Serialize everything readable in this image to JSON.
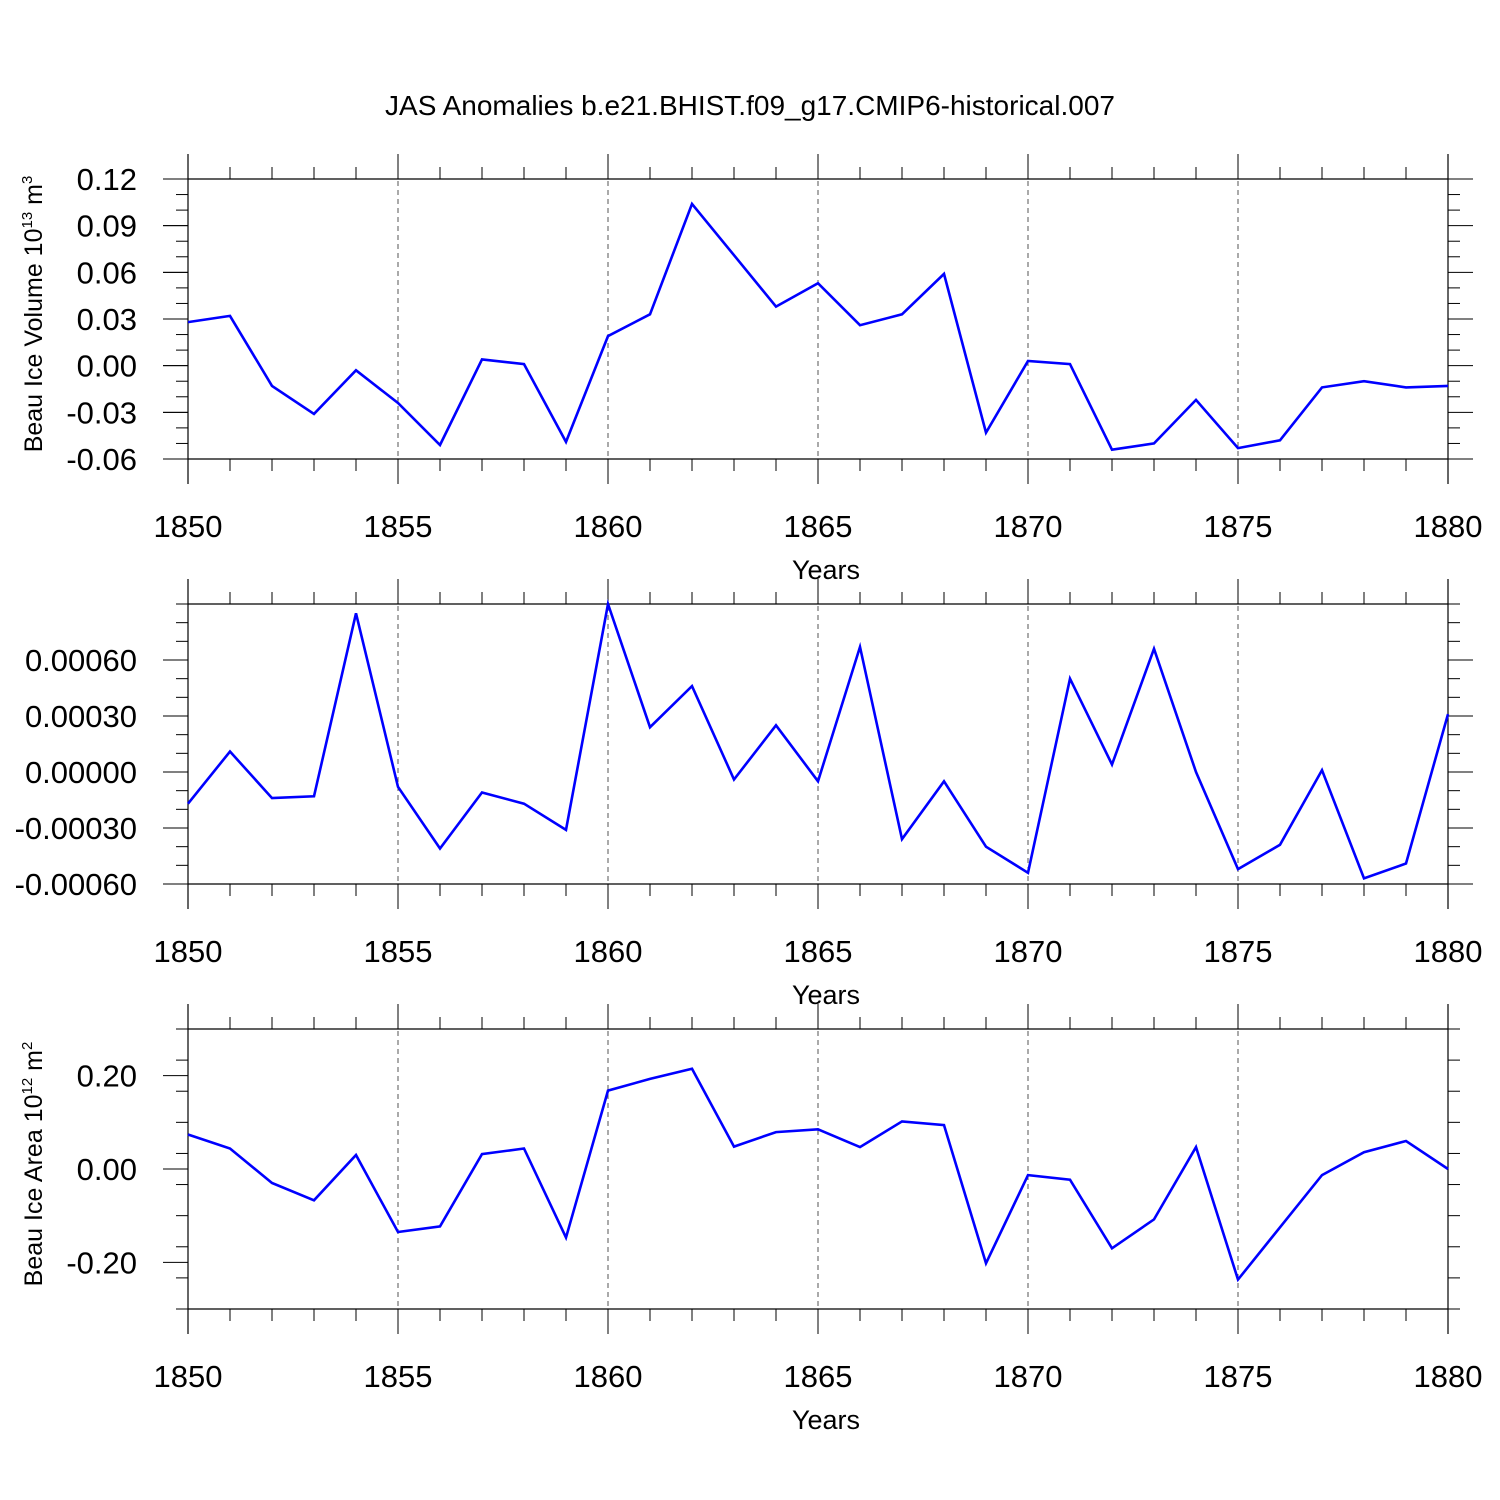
{
  "title": "JAS Anomalies b.e21.BHIST.f09_g17.CMIP6-historical.007",
  "colors": {
    "line": "#0000ff",
    "axis": "#000000",
    "grid": "#555555"
  },
  "chart_data": [
    {
      "type": "line",
      "ylabel": "Beau Ice Volume 10",
      "ylabel_sup": "13",
      "ylabel_unit": " m",
      "ylabel_unit_sup": "3",
      "xlabel": "Years",
      "xlim": [
        1850,
        1880
      ],
      "ylim": [
        -0.06,
        0.12
      ],
      "yticks": [
        -0.06,
        -0.03,
        0.0,
        0.03,
        0.06,
        0.09,
        0.12
      ],
      "ytick_labels": [
        "-0.06",
        "-0.03",
        "0.00",
        "0.03",
        "0.06",
        "0.09",
        "0.12"
      ],
      "xticks": [
        1850,
        1855,
        1860,
        1865,
        1870,
        1875,
        1880
      ],
      "xtick_labels": [
        "1850",
        "1855",
        "1860",
        "1865",
        "1870",
        "1875",
        "1880"
      ],
      "x": [
        1850,
        1851,
        1852,
        1853,
        1854,
        1855,
        1856,
        1857,
        1858,
        1859,
        1860,
        1861,
        1862,
        1863,
        1864,
        1865,
        1866,
        1867,
        1868,
        1869,
        1870,
        1871,
        1872,
        1873,
        1874,
        1875,
        1876,
        1877,
        1878,
        1879,
        1880
      ],
      "y": [
        0.028,
        0.032,
        -0.013,
        -0.031,
        -0.003,
        -0.024,
        -0.051,
        0.004,
        0.001,
        -0.049,
        0.019,
        0.033,
        0.104,
        0.071,
        0.038,
        0.053,
        0.026,
        0.033,
        0.059,
        -0.043,
        0.003,
        0.001,
        -0.054,
        -0.05,
        -0.022,
        -0.053,
        -0.048,
        -0.014,
        -0.01,
        -0.014,
        -0.013
      ]
    },
    {
      "type": "line",
      "ylabel": "",
      "xlabel": "Years",
      "xlim": [
        1850,
        1880
      ],
      "ylim": [
        -0.0006,
        0.0009
      ],
      "yticks": [
        -0.0006,
        -0.0003,
        0.0,
        0.0003,
        0.0006
      ],
      "ytick_labels": [
        "-0.00060",
        "-0.00030",
        "0.00000",
        "0.00030",
        "0.00060"
      ],
      "xticks": [
        1850,
        1855,
        1860,
        1865,
        1870,
        1875,
        1880
      ],
      "xtick_labels": [
        "1850",
        "1855",
        "1860",
        "1865",
        "1870",
        "1875",
        "1880"
      ],
      "x": [
        1850,
        1851,
        1852,
        1853,
        1854,
        1855,
        1856,
        1857,
        1858,
        1859,
        1860,
        1861,
        1862,
        1863,
        1864,
        1865,
        1866,
        1867,
        1868,
        1869,
        1870,
        1871,
        1872,
        1873,
        1874,
        1875,
        1876,
        1877,
        1878,
        1879,
        1880
      ],
      "y": [
        -0.00017,
        0.00011,
        -0.00014,
        -0.00013,
        0.00085,
        -8e-05,
        -0.00041,
        -0.00011,
        -0.00017,
        -0.00031,
        0.0009,
        0.00024,
        0.00046,
        -4e-05,
        0.00025,
        -5e-05,
        0.00067,
        -0.00036,
        -5e-05,
        -0.0004,
        -0.00054,
        0.0005,
        4e-05,
        0.00066,
        0.0,
        -0.00052,
        -0.00039,
        1e-05,
        -0.00057,
        -0.00049,
        0.00031
      ]
    },
    {
      "type": "line",
      "ylabel": "Beau Ice Area 10",
      "ylabel_sup": "12",
      "ylabel_unit": " m",
      "ylabel_unit_sup": "2",
      "xlabel": "Years",
      "xlim": [
        1850,
        1880
      ],
      "ylim": [
        -0.3,
        0.3
      ],
      "yticks": [
        -0.2,
        0.0,
        0.2
      ],
      "ytick_labels": [
        "-0.20",
        "0.00",
        "0.20"
      ],
      "xticks": [
        1850,
        1855,
        1860,
        1865,
        1870,
        1875,
        1880
      ],
      "xtick_labels": [
        "1850",
        "1855",
        "1860",
        "1865",
        "1870",
        "1875",
        "1880"
      ],
      "x": [
        1850,
        1851,
        1852,
        1853,
        1854,
        1855,
        1856,
        1857,
        1858,
        1859,
        1860,
        1861,
        1862,
        1863,
        1864,
        1865,
        1866,
        1867,
        1868,
        1869,
        1870,
        1871,
        1872,
        1873,
        1874,
        1875,
        1876,
        1877,
        1878,
        1879,
        1880
      ],
      "y": [
        0.074,
        0.044,
        -0.03,
        -0.067,
        0.03,
        -0.135,
        -0.123,
        0.032,
        0.044,
        -0.147,
        0.168,
        0.193,
        0.215,
        0.048,
        0.079,
        0.085,
        0.047,
        0.102,
        0.094,
        -0.202,
        -0.013,
        -0.023,
        -0.17,
        -0.108,
        0.047,
        -0.237,
        -0.125,
        -0.013,
        0.036,
        0.06,
        0.0
      ]
    }
  ]
}
